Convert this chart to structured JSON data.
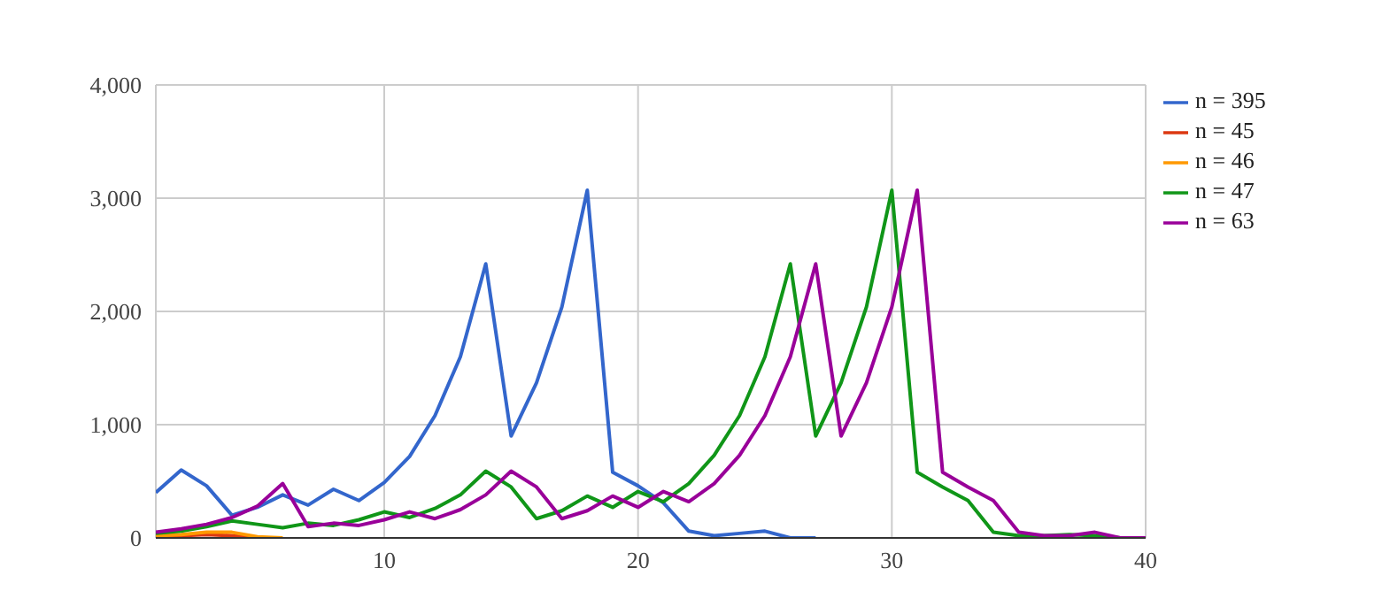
{
  "chart_data": {
    "type": "line",
    "x": [
      1,
      2,
      3,
      4,
      5,
      6,
      7,
      8,
      9,
      10,
      11,
      12,
      13,
      14,
      15,
      16,
      17,
      18,
      19,
      20,
      21,
      22,
      23,
      24,
      25,
      26,
      27,
      28,
      29,
      30,
      31,
      32,
      33,
      34,
      35,
      36,
      37,
      38,
      39,
      40
    ],
    "series": [
      {
        "name": "n = 395",
        "color": "#3366cc",
        "values": [
          400,
          600,
          460,
          200,
          270,
          380,
          290,
          430,
          330,
          490,
          720,
          1080,
          1600,
          2420,
          900,
          1370,
          2040,
          3070,
          580,
          460,
          310,
          60,
          20,
          40,
          60,
          0,
          0,
          null,
          null,
          null,
          null,
          null,
          null,
          null,
          null,
          null,
          null,
          null,
          null,
          null
        ]
      },
      {
        "name": "n = 45",
        "color": "#dc3912",
        "values": [
          10,
          20,
          30,
          20,
          0,
          null,
          null,
          null,
          null,
          null,
          null,
          null,
          null,
          null,
          null,
          null,
          null,
          null,
          null,
          null,
          null,
          null,
          null,
          null,
          null,
          null,
          null,
          null,
          null,
          null,
          null,
          null,
          null,
          null,
          null,
          null,
          null,
          null,
          null,
          null
        ]
      },
      {
        "name": "n = 46",
        "color": "#ff9900",
        "values": [
          20,
          30,
          50,
          50,
          10,
          0,
          null,
          null,
          null,
          null,
          null,
          null,
          null,
          null,
          null,
          null,
          null,
          null,
          null,
          null,
          null,
          null,
          null,
          null,
          null,
          null,
          null,
          null,
          null,
          null,
          null,
          null,
          null,
          null,
          null,
          null,
          null,
          null,
          null,
          null
        ]
      },
      {
        "name": "n = 47",
        "color": "#109618",
        "values": [
          40,
          60,
          100,
          150,
          120,
          90,
          130,
          110,
          160,
          230,
          180,
          260,
          380,
          590,
          450,
          170,
          240,
          370,
          270,
          410,
          320,
          480,
          730,
          1080,
          1600,
          2420,
          900,
          1370,
          2040,
          3070,
          580,
          450,
          330,
          50,
          20,
          20,
          30,
          20,
          0,
          0
        ]
      },
      {
        "name": "n = 63",
        "color": "#990099",
        "values": [
          50,
          80,
          120,
          180,
          280,
          480,
          100,
          130,
          110,
          160,
          230,
          170,
          250,
          380,
          590,
          450,
          170,
          240,
          370,
          270,
          410,
          320,
          480,
          730,
          1080,
          1600,
          2420,
          900,
          1370,
          2040,
          3070,
          580,
          450,
          330,
          50,
          20,
          20,
          50,
          0,
          0
        ]
      }
    ],
    "xlim": [
      1,
      40
    ],
    "xticks": [
      10,
      20,
      30,
      40
    ],
    "ylim": [
      0,
      4000
    ],
    "yticks": [
      0,
      {
        "value": 1000,
        "label": "1,000"
      },
      {
        "value": 2000,
        "label": "2,000"
      },
      {
        "value": 3000,
        "label": "3,000"
      },
      {
        "value": 4000,
        "label": "4,000"
      }
    ],
    "grid": true,
    "legend": "right",
    "marker": "none",
    "line_style": "solid"
  }
}
